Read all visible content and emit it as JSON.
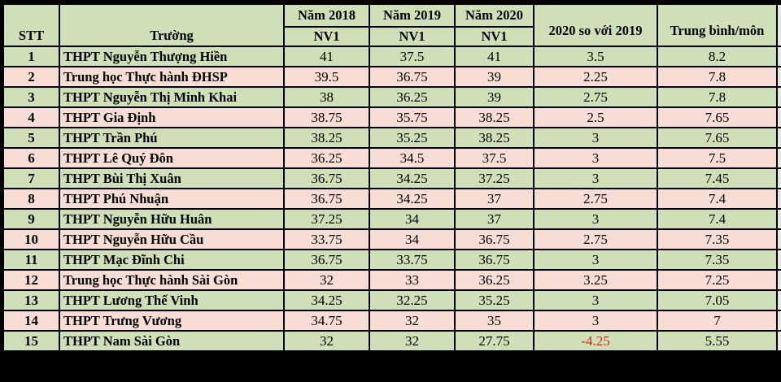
{
  "header": {
    "stt": "STT",
    "truong": "Trường",
    "nam2018": "Năm 2018",
    "nam2019": "Năm 2019",
    "nam2020": "Năm 2020",
    "nv1": "NV1",
    "comparison": "2020 so với 2019",
    "average": "Trung bình/môn"
  },
  "colors": {
    "green_row": "#cfe0b8",
    "pink_row": "#f7ddd3",
    "negative": "#d8261b",
    "grid": "#000000"
  },
  "rows": [
    {
      "stt": "1",
      "school": "THPT Nguyễn Thượng Hiền",
      "y2018": "41",
      "y2019": "37.5",
      "y2020": "41",
      "diff": "3.5",
      "avg": "8.2"
    },
    {
      "stt": "2",
      "school": "Trung học Thực hành ĐHSP",
      "y2018": "39.5",
      "y2019": "36.75",
      "y2020": "39",
      "diff": "2.25",
      "avg": "7.8"
    },
    {
      "stt": "3",
      "school": "THPT Nguyễn Thị Minh Khai",
      "y2018": "38",
      "y2019": "36.25",
      "y2020": "39",
      "diff": "2.75",
      "avg": "7.8"
    },
    {
      "stt": "4",
      "school": "THPT Gia Định",
      "y2018": "38.75",
      "y2019": "35.75",
      "y2020": "38.25",
      "diff": "2.5",
      "avg": "7.65"
    },
    {
      "stt": "5",
      "school": "THPT Trần Phú",
      "y2018": "38.25",
      "y2019": "35.25",
      "y2020": "38.25",
      "diff": "3",
      "avg": "7.65"
    },
    {
      "stt": "6",
      "school": "THPT Lê Quý Đôn",
      "y2018": "36.25",
      "y2019": "34.5",
      "y2020": "37.5",
      "diff": "3",
      "avg": "7.5"
    },
    {
      "stt": "7",
      "school": "THPT Bùi Thị Xuân",
      "y2018": "36.75",
      "y2019": "34.25",
      "y2020": "37.25",
      "diff": "3",
      "avg": "7.45"
    },
    {
      "stt": "8",
      "school": "THPT Phú Nhuận",
      "y2018": "36.75",
      "y2019": "34.25",
      "y2020": "37",
      "diff": "2.75",
      "avg": "7.4"
    },
    {
      "stt": "9",
      "school": "THPT Nguyễn Hữu Huân",
      "y2018": "37.25",
      "y2019": "34",
      "y2020": "37",
      "diff": "3",
      "avg": "7.4"
    },
    {
      "stt": "10",
      "school": "THPT Nguyễn Hữu Cầu",
      "y2018": "33.75",
      "y2019": "34",
      "y2020": "36.75",
      "diff": "2.75",
      "avg": "7.35"
    },
    {
      "stt": "11",
      "school": "THPT Mạc Đĩnh Chi",
      "y2018": "36.75",
      "y2019": "33.75",
      "y2020": "36.75",
      "diff": "3",
      "avg": "7.35"
    },
    {
      "stt": "12",
      "school": "Trung học Thực hành Sài Gòn",
      "y2018": "32",
      "y2019": "33",
      "y2020": "36.25",
      "diff": "3.25",
      "avg": "7.25"
    },
    {
      "stt": "13",
      "school": "THPT Lương Thế Vinh",
      "y2018": "34.25",
      "y2019": "32.25",
      "y2020": "35.25",
      "diff": "3",
      "avg": "7.05"
    },
    {
      "stt": "14",
      "school": "THPT Trưng Vương",
      "y2018": "34.75",
      "y2019": "32",
      "y2020": "35",
      "diff": "3",
      "avg": "7"
    },
    {
      "stt": "15",
      "school": "THPT Nam Sài Gòn",
      "y2018": "32",
      "y2019": "32",
      "y2020": "27.75",
      "diff": "-4.25",
      "avg": "5.55"
    }
  ]
}
